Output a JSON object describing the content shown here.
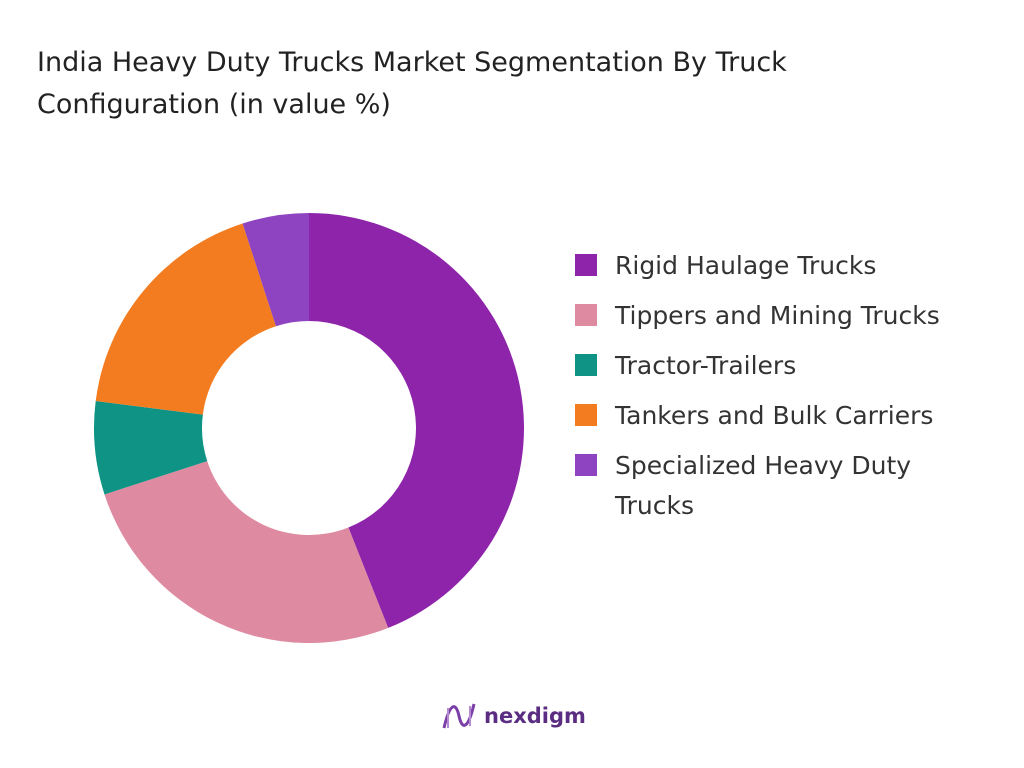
{
  "chart_data": {
    "type": "donut",
    "title": "India Heavy Duty Trucks Market Segmentation By Truck Configuration (in value %)",
    "categories": [
      "Rigid Haulage Trucks",
      "Tippers and Mining Trucks",
      "Tractor-Trailers",
      "Tankers and Bulk Carriers",
      "Specialized Heavy Duty Trucks"
    ],
    "values": [
      44,
      26,
      7,
      18,
      5
    ],
    "colors": [
      "#8e24aa",
      "#de8aa0",
      "#0e9384",
      "#f47c20",
      "#8e44c0"
    ],
    "legend": "right"
  },
  "logo_text": "nexdigm"
}
